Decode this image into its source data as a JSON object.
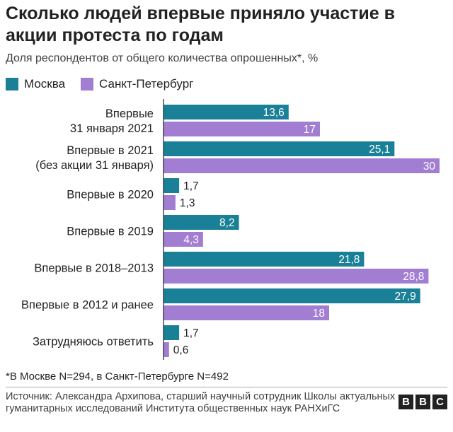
{
  "header": {
    "title": "Сколько людей впервые приняло участие в акции протеста по годам",
    "subtitle": "Доля респондентов от общего количества опрошенных*, %"
  },
  "legend": [
    {
      "label": "Москва",
      "color": "#1a8097"
    },
    {
      "label": "Санкт-Петербург",
      "color": "#a27ed2"
    }
  ],
  "chart_data": {
    "type": "bar",
    "orientation": "horizontal",
    "categories": [
      [
        "Впервые",
        "31 января 2021"
      ],
      [
        "Впервые в 2021",
        "(без акции 31 января)"
      ],
      [
        "Впервые в 2020"
      ],
      [
        "Впервые в 2019"
      ],
      [
        "Впервые в 2018–2013"
      ],
      [
        "Впервые в 2012 и ранее"
      ],
      [
        "Затрудняюсь ответить"
      ]
    ],
    "series": [
      {
        "name": "Москва",
        "color": "#1a8097",
        "values": [
          13.6,
          25.1,
          1.7,
          8.2,
          21.8,
          27.9,
          1.7
        ],
        "labels": [
          "13,6",
          "25,1",
          "1,7",
          "8,2",
          "21,8",
          "27,9",
          "1,7"
        ]
      },
      {
        "name": "Санкт-Петербург",
        "color": "#a27ed2",
        "values": [
          17,
          30,
          1.3,
          4.3,
          28.8,
          18,
          0.6
        ],
        "labels": [
          "17",
          "30",
          "1,3",
          "4,3",
          "28,8",
          "18",
          "0,6"
        ]
      }
    ],
    "xlim": [
      0,
      30
    ],
    "grid": false
  },
  "footer": {
    "footnote": "*В Москве N=294, в Санкт-Петербурге N=492",
    "source": "Источник: Александра Архипова, старший научный сотрудник Школы актуальных гуманитарных исследований Института общественных наук РАНХиГС",
    "logo": [
      "B",
      "B",
      "C"
    ]
  }
}
